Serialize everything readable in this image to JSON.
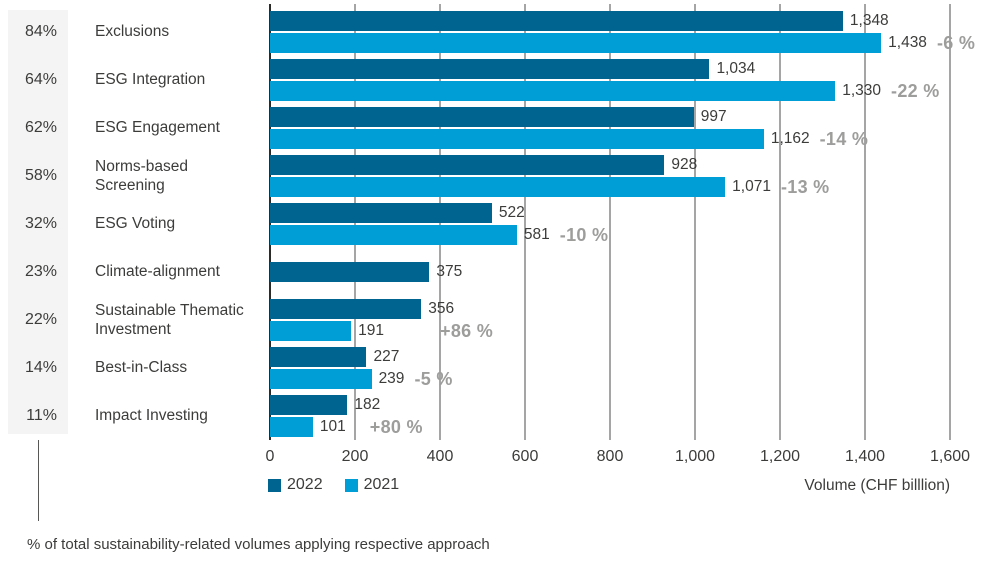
{
  "chart_data": {
    "type": "bar",
    "orientation": "horizontal",
    "title": "",
    "xlabel": "Volume (CHF billlion)",
    "ylabel": "",
    "xlim": [
      0,
      1600
    ],
    "grid": true,
    "legend_position": "bottom-left",
    "series_names": [
      "2022",
      "2021"
    ],
    "x_ticks": [
      {
        "value": 0,
        "label": "0"
      },
      {
        "value": 200,
        "label": "200"
      },
      {
        "value": 400,
        "label": "400"
      },
      {
        "value": 600,
        "label": "600"
      },
      {
        "value": 800,
        "label": "800"
      },
      {
        "value": 1000,
        "label": "1,000"
      },
      {
        "value": 1200,
        "label": "1,200"
      },
      {
        "value": 1400,
        "label": "1,400"
      },
      {
        "value": 1600,
        "label": "1,600"
      }
    ],
    "rows": [
      {
        "percent": "84%",
        "category": "Exclusions",
        "value_2022": 1348,
        "label_2022": "1,348",
        "value_2021": 1438,
        "label_2021": "1,438",
        "change": "-6 %"
      },
      {
        "percent": "64%",
        "category": "ESG Integration",
        "value_2022": 1034,
        "label_2022": "1,034",
        "value_2021": 1330,
        "label_2021": "1,330",
        "change": "-22 %"
      },
      {
        "percent": "62%",
        "category": "ESG Engagement",
        "value_2022": 997,
        "label_2022": "997",
        "value_2021": 1162,
        "label_2021": "1,162",
        "change": "-14 %"
      },
      {
        "percent": "58%",
        "category": "Norms-based Screening",
        "value_2022": 928,
        "label_2022": "928",
        "value_2021": 1071,
        "label_2021": "1,071",
        "change": "-13 %"
      },
      {
        "percent": "32%",
        "category": "ESG Voting",
        "value_2022": 522,
        "label_2022": "522",
        "value_2021": 581,
        "label_2021": "581",
        "change": "-10 %"
      },
      {
        "percent": "23%",
        "category": "Climate-alignment",
        "value_2022": 375,
        "label_2022": "375",
        "value_2021": null,
        "label_2021": null,
        "change": null
      },
      {
        "percent": "22%",
        "category": "Sustainable Thematic Investment",
        "value_2022": 356,
        "label_2022": "356",
        "value_2021": 191,
        "label_2021": "191",
        "change": "+86 %"
      },
      {
        "percent": "14%",
        "category": "Best-in-Class",
        "value_2022": 227,
        "label_2022": "227",
        "value_2021": 239,
        "label_2021": "239",
        "change": "-5 %"
      },
      {
        "percent": "11%",
        "category": "Impact Investing",
        "value_2022": 182,
        "label_2022": "182",
        "value_2021": 101,
        "label_2021": "101",
        "change": "+80 %"
      }
    ],
    "legend": [
      {
        "label": "2022",
        "color": "#006491"
      },
      {
        "label": "2021",
        "color": "#009ed6"
      }
    ],
    "footnote": "% of total sustainability-related volumes applying respective approach"
  },
  "colors": {
    "bar_2022": "#006491",
    "bar_2021": "#009ed6",
    "change_text": "#9d9d9c",
    "text": "#3c3c3b",
    "gridline": "#a5a5a5",
    "zero_line": "#2b2b2a",
    "percent_panel": "#f4f4f4"
  }
}
